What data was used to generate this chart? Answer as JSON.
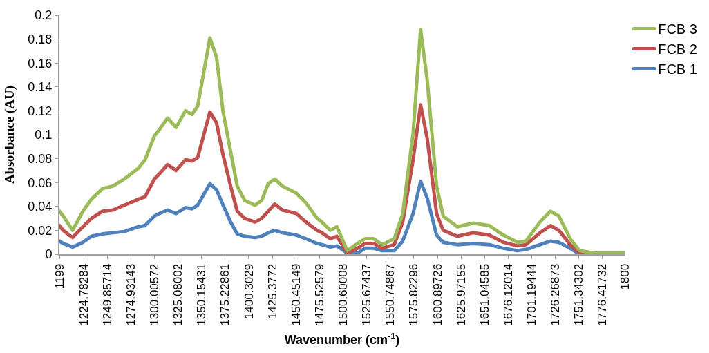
{
  "chart_data": {
    "type": "line",
    "xlabel": "Wavenumber (cm$^{-1}$)",
    "ylabel": "Absorbance (AU)",
    "x": [
      1199,
      1203,
      1213,
      1224,
      1233,
      1245,
      1256,
      1268,
      1283,
      1290,
      1300,
      1305,
      1314,
      1323,
      1333,
      1340,
      1346,
      1359,
      1366,
      1373,
      1381,
      1388,
      1396,
      1407,
      1414,
      1421,
      1428,
      1436,
      1451,
      1461,
      1473,
      1478,
      1487,
      1494,
      1505,
      1516,
      1524,
      1533,
      1542,
      1555,
      1564,
      1575,
      1583,
      1590,
      1600,
      1607,
      1622,
      1639,
      1656,
      1671,
      1686,
      1695,
      1710,
      1721,
      1730,
      1742,
      1752,
      1767,
      1800
    ],
    "series": [
      {
        "name": "FCB 1",
        "color": "#4f81bd",
        "values": [
          0.011,
          0.009,
          0.006,
          0.01,
          0.015,
          0.017,
          0.018,
          0.019,
          0.023,
          0.024,
          0.032,
          0.034,
          0.037,
          0.034,
          0.039,
          0.038,
          0.041,
          0.059,
          0.054,
          0.041,
          0.027,
          0.017,
          0.015,
          0.014,
          0.015,
          0.018,
          0.02,
          0.018,
          0.016,
          0.013,
          0.009,
          0.008,
          0.006,
          0.007,
          0.001,
          0.001,
          0.005,
          0.005,
          0.003,
          0.003,
          0.011,
          0.034,
          0.061,
          0.047,
          0.016,
          0.01,
          0.008,
          0.009,
          0.008,
          0.005,
          0.003,
          0.004,
          0.008,
          0.011,
          0.01,
          0.005,
          0,
          0,
          0
        ]
      },
      {
        "name": "FCB 2",
        "color": "#c0504d",
        "values": [
          0.024,
          0.02,
          0.014,
          0.023,
          0.03,
          0.036,
          0.037,
          0.041,
          0.046,
          0.048,
          0.063,
          0.067,
          0.075,
          0.07,
          0.079,
          0.078,
          0.081,
          0.119,
          0.11,
          0.083,
          0.057,
          0.036,
          0.03,
          0.027,
          0.03,
          0.036,
          0.042,
          0.037,
          0.034,
          0.027,
          0.02,
          0.018,
          0.013,
          0.015,
          0.001,
          0.005,
          0.009,
          0.009,
          0.005,
          0.008,
          0.027,
          0.079,
          0.125,
          0.097,
          0.034,
          0.02,
          0.015,
          0.018,
          0.016,
          0.01,
          0.007,
          0.008,
          0.018,
          0.024,
          0.02,
          0.008,
          0.001,
          0,
          0
        ]
      },
      {
        "name": "FCB 3",
        "color": "#9bbb59",
        "values": [
          0.036,
          0.032,
          0.02,
          0.036,
          0.046,
          0.055,
          0.057,
          0.063,
          0.072,
          0.079,
          0.099,
          0.104,
          0.114,
          0.106,
          0.12,
          0.117,
          0.124,
          0.181,
          0.165,
          0.119,
          0.086,
          0.057,
          0.045,
          0.041,
          0.045,
          0.059,
          0.063,
          0.057,
          0.051,
          0.043,
          0.03,
          0.027,
          0.02,
          0.023,
          0.003,
          0.009,
          0.013,
          0.013,
          0.008,
          0.013,
          0.034,
          0.101,
          0.188,
          0.146,
          0.057,
          0.032,
          0.023,
          0.026,
          0.024,
          0.016,
          0.01,
          0.011,
          0.027,
          0.036,
          0.032,
          0.013,
          0.003,
          0.001,
          0.001
        ]
      }
    ],
    "xlim": [
      1199,
      1800
    ],
    "xticks": [
      1199,
      1224.78284,
      1249.85714,
      1274.93143,
      1300.00572,
      1325.08002,
      1350.15431,
      1375.22861,
      1400.3029,
      1425.3772,
      1450.45149,
      1475.52579,
      1500.60008,
      1525.67437,
      1550.74867,
      1575.82296,
      1600.89726,
      1625.97155,
      1651.04585,
      1676.12014,
      1701.19444,
      1726.26873,
      1751.34302,
      1776.41732,
      1800
    ],
    "ylim": [
      0,
      0.2
    ],
    "yticks": [
      0,
      0.02,
      0.04,
      0.06,
      0.08,
      0.1,
      0.12,
      0.14,
      0.16,
      0.18,
      0.2
    ],
    "grid": false,
    "legend": "top right",
    "line_style": "solid",
    "marker": "none"
  }
}
